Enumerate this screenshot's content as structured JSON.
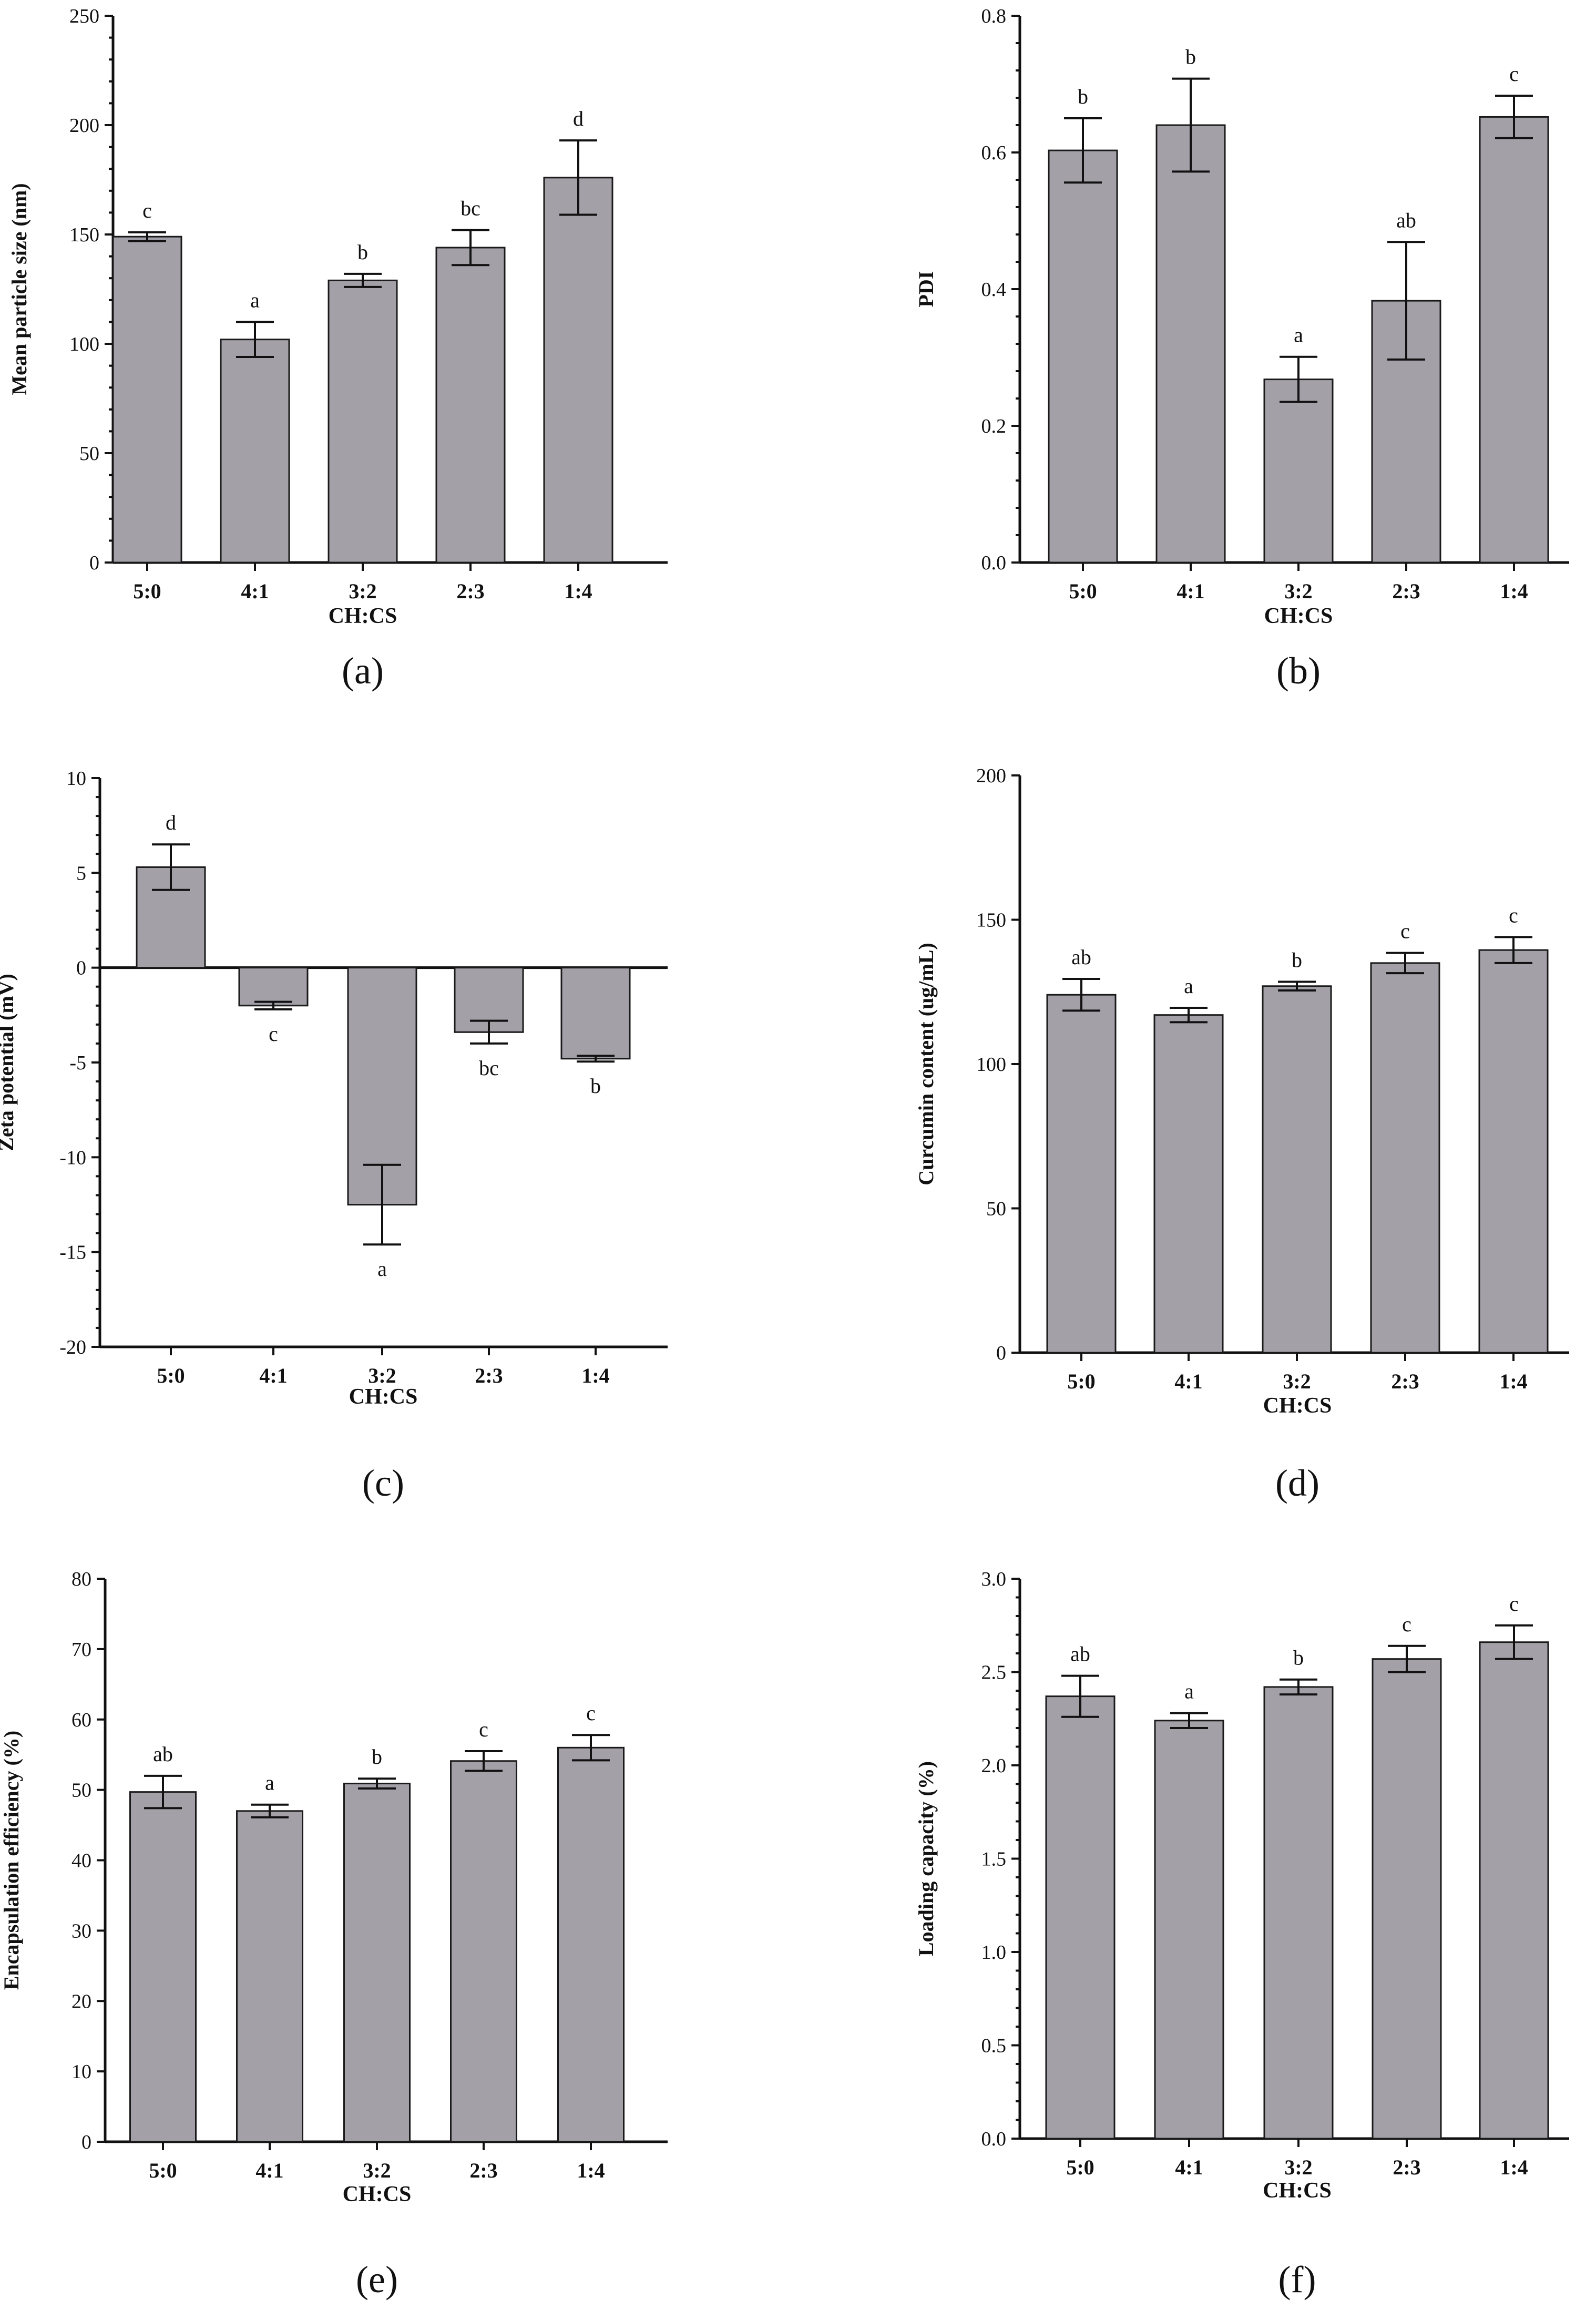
{
  "figure": {
    "bar_color": "#a3a0a8",
    "axis_color": "#111111"
  },
  "chart_data": [
    {
      "id": "a",
      "panel_label": "(a)",
      "type": "bar",
      "title": "",
      "xlabel": "CH:CS",
      "ylabel": "Mean particle size (nm)",
      "categories": [
        "5:0",
        "4:1",
        "3:2",
        "2:3",
        "1:4"
      ],
      "values": [
        149,
        102,
        129,
        144,
        176
      ],
      "errors": [
        2,
        8,
        3,
        8,
        17
      ],
      "significance": [
        "c",
        "a",
        "b",
        "bc",
        "d"
      ],
      "ylim": [
        0,
        250
      ],
      "yticks": [
        0,
        50,
        100,
        150,
        200,
        250
      ],
      "ytick_labels": [
        "0",
        "50",
        "100",
        "150",
        "200",
        "250"
      ],
      "minor_ticks": true
    },
    {
      "id": "b",
      "panel_label": "(b)",
      "type": "bar",
      "title": "",
      "xlabel": "CH:CS",
      "ylabel": "PDI",
      "categories": [
        "5:0",
        "4:1",
        "3:2",
        "2:3",
        "1:4"
      ],
      "values": [
        0.603,
        0.64,
        0.268,
        0.383,
        0.652
      ],
      "errors": [
        0.047,
        0.068,
        0.033,
        0.086,
        0.031
      ],
      "significance": [
        "b",
        "b",
        "a",
        "ab",
        "c"
      ],
      "ylim": [
        0,
        0.8
      ],
      "yticks": [
        0,
        0.2,
        0.4,
        0.6,
        0.8
      ],
      "ytick_labels": [
        "0.0",
        "0.2",
        "0.4",
        "0.6",
        "0.8"
      ],
      "minor_ticks": true
    },
    {
      "id": "c",
      "panel_label": "(c)",
      "type": "bar",
      "title": "",
      "xlabel": "CH:CS",
      "ylabel": "Zeta potential (mV)",
      "categories": [
        "5:0",
        "4:1",
        "3:2",
        "2:3",
        "1:4"
      ],
      "values": [
        5.3,
        -2.0,
        -12.5,
        -3.4,
        -4.8
      ],
      "errors": [
        1.2,
        0.2,
        2.1,
        0.6,
        0.15
      ],
      "significance": [
        "d",
        "c",
        "a",
        "bc",
        "b"
      ],
      "ylim": [
        -20,
        10
      ],
      "yticks": [
        -20,
        -15,
        -10,
        -5,
        0,
        5,
        10
      ],
      "ytick_labels": [
        "-20",
        "-15",
        "-10",
        "-5",
        "0",
        "5",
        "10"
      ],
      "minor_ticks": true
    },
    {
      "id": "d",
      "panel_label": "(d)",
      "type": "bar",
      "title": "",
      "xlabel": "CH:CS",
      "ylabel": "Curcumin content (ug/mL)",
      "categories": [
        "5:0",
        "4:1",
        "3:2",
        "2:3",
        "1:4"
      ],
      "values": [
        124,
        117,
        127,
        135,
        139.5
      ],
      "errors": [
        5.5,
        2.5,
        1.5,
        3.5,
        4.5
      ],
      "significance": [
        "ab",
        "a",
        "b",
        "c",
        "c"
      ],
      "ylim": [
        0,
        200
      ],
      "yticks": [
        0,
        50,
        100,
        150,
        200
      ],
      "ytick_labels": [
        "0",
        "50",
        "100",
        "150",
        "200"
      ],
      "minor_ticks": false
    },
    {
      "id": "e",
      "panel_label": "(e)",
      "type": "bar",
      "title": "",
      "xlabel": "CH:CS",
      "ylabel": "Encapsulation efficiency (%)",
      "categories": [
        "5:0",
        "4:1",
        "3:2",
        "2:3",
        "1:4"
      ],
      "values": [
        49.7,
        47,
        50.9,
        54.1,
        56
      ],
      "errors": [
        2.3,
        0.9,
        0.7,
        1.4,
        1.8
      ],
      "significance": [
        "ab",
        "a",
        "b",
        "c",
        "c"
      ],
      "ylim": [
        0,
        80
      ],
      "yticks": [
        0,
        10,
        20,
        30,
        40,
        50,
        60,
        70,
        80
      ],
      "ytick_labels": [
        "0",
        "10",
        "20",
        "30",
        "40",
        "50",
        "60",
        "70",
        "80"
      ],
      "minor_ticks": false
    },
    {
      "id": "f",
      "panel_label": "(f)",
      "type": "bar",
      "title": "",
      "xlabel": "CH:CS",
      "ylabel": "Loading capacity (%)",
      "categories": [
        "5:0",
        "4:1",
        "3:2",
        "2:3",
        "1:4"
      ],
      "values": [
        2.37,
        2.24,
        2.42,
        2.57,
        2.66
      ],
      "errors": [
        0.11,
        0.04,
        0.04,
        0.07,
        0.09
      ],
      "significance": [
        "ab",
        "a",
        "b",
        "c",
        "c"
      ],
      "ylim": [
        0,
        3.0
      ],
      "yticks": [
        0,
        0.5,
        1.0,
        1.5,
        2.0,
        2.5,
        3.0
      ],
      "ytick_labels": [
        "0.0",
        "0.5",
        "1.0",
        "1.5",
        "2.0",
        "2.5",
        "3.0"
      ],
      "minor_ticks": true
    }
  ]
}
